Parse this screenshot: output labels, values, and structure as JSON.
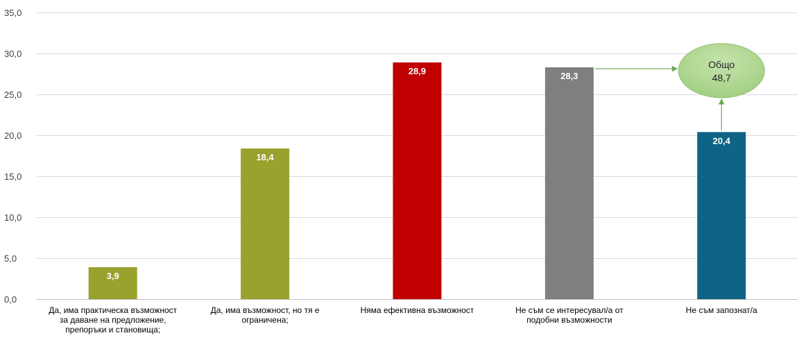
{
  "chart_data": {
    "type": "bar",
    "categories": [
      [
        "Да, има практическа възможност",
        "за даване на предложение,",
        "препоръки и становища;"
      ],
      [
        "Да, има възможност, но тя е",
        "ограничена;"
      ],
      [
        "Няма ефективна възможност"
      ],
      [
        "Не съм се интересувал/а от",
        "подобни възможности"
      ],
      [
        "Не съм запознат/а"
      ]
    ],
    "values": [
      3.9,
      18.4,
      28.9,
      28.3,
      20.4
    ],
    "value_labels": [
      "3,9",
      "18,4",
      "28,9",
      "28,3",
      "20,4"
    ],
    "bar_colors": [
      "#98a22c",
      "#98a22c",
      "#c00000",
      "#7f7f7f",
      "#0f6384"
    ],
    "ylim": [
      0,
      35
    ],
    "yticks": [
      0,
      5,
      10,
      15,
      20,
      25,
      30,
      35
    ],
    "ytick_labels": [
      "0,0",
      "5,0",
      "10,0",
      "15,0",
      "20,0",
      "25,0",
      "30,0",
      "35,0"
    ],
    "grid": true,
    "title": "",
    "xlabel": "",
    "ylabel": "",
    "annotation": {
      "line1": "Общо",
      "line2": "48,7",
      "value": 48.7,
      "sources": [
        3,
        4
      ],
      "fill": "#9fcf7f",
      "arrow_color": "#6aa84f"
    }
  }
}
